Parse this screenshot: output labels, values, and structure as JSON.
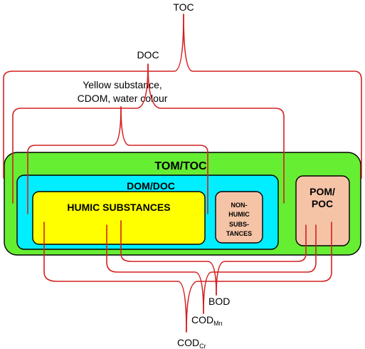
{
  "labels": {
    "toc": "TOC",
    "doc": "DOC",
    "yellow_line1": "Yellow substance,",
    "yellow_line2": "CDOM, water colour",
    "bod": "BOD",
    "codmn_main": "COD",
    "codmn_sub": "Mn",
    "codcr_main": "COD",
    "codcr_sub": "Cr"
  },
  "boxes": {
    "tom_toc": "TOM/TOC",
    "dom_doc": "DOM/DOC",
    "humic": "HUMIC SUBSTANCES",
    "nonhumic": [
      "NON-",
      "HUMIC",
      "SUBS-",
      "TANCES"
    ],
    "pom_line1": "POM/",
    "pom_line2": "POC"
  },
  "colors": {
    "tom_fill": "#66ee33",
    "dom_fill": "#00eeff",
    "humic_fill": "#ffff00",
    "pom_fill": "#f5c3a6",
    "connector": "#d42020"
  }
}
